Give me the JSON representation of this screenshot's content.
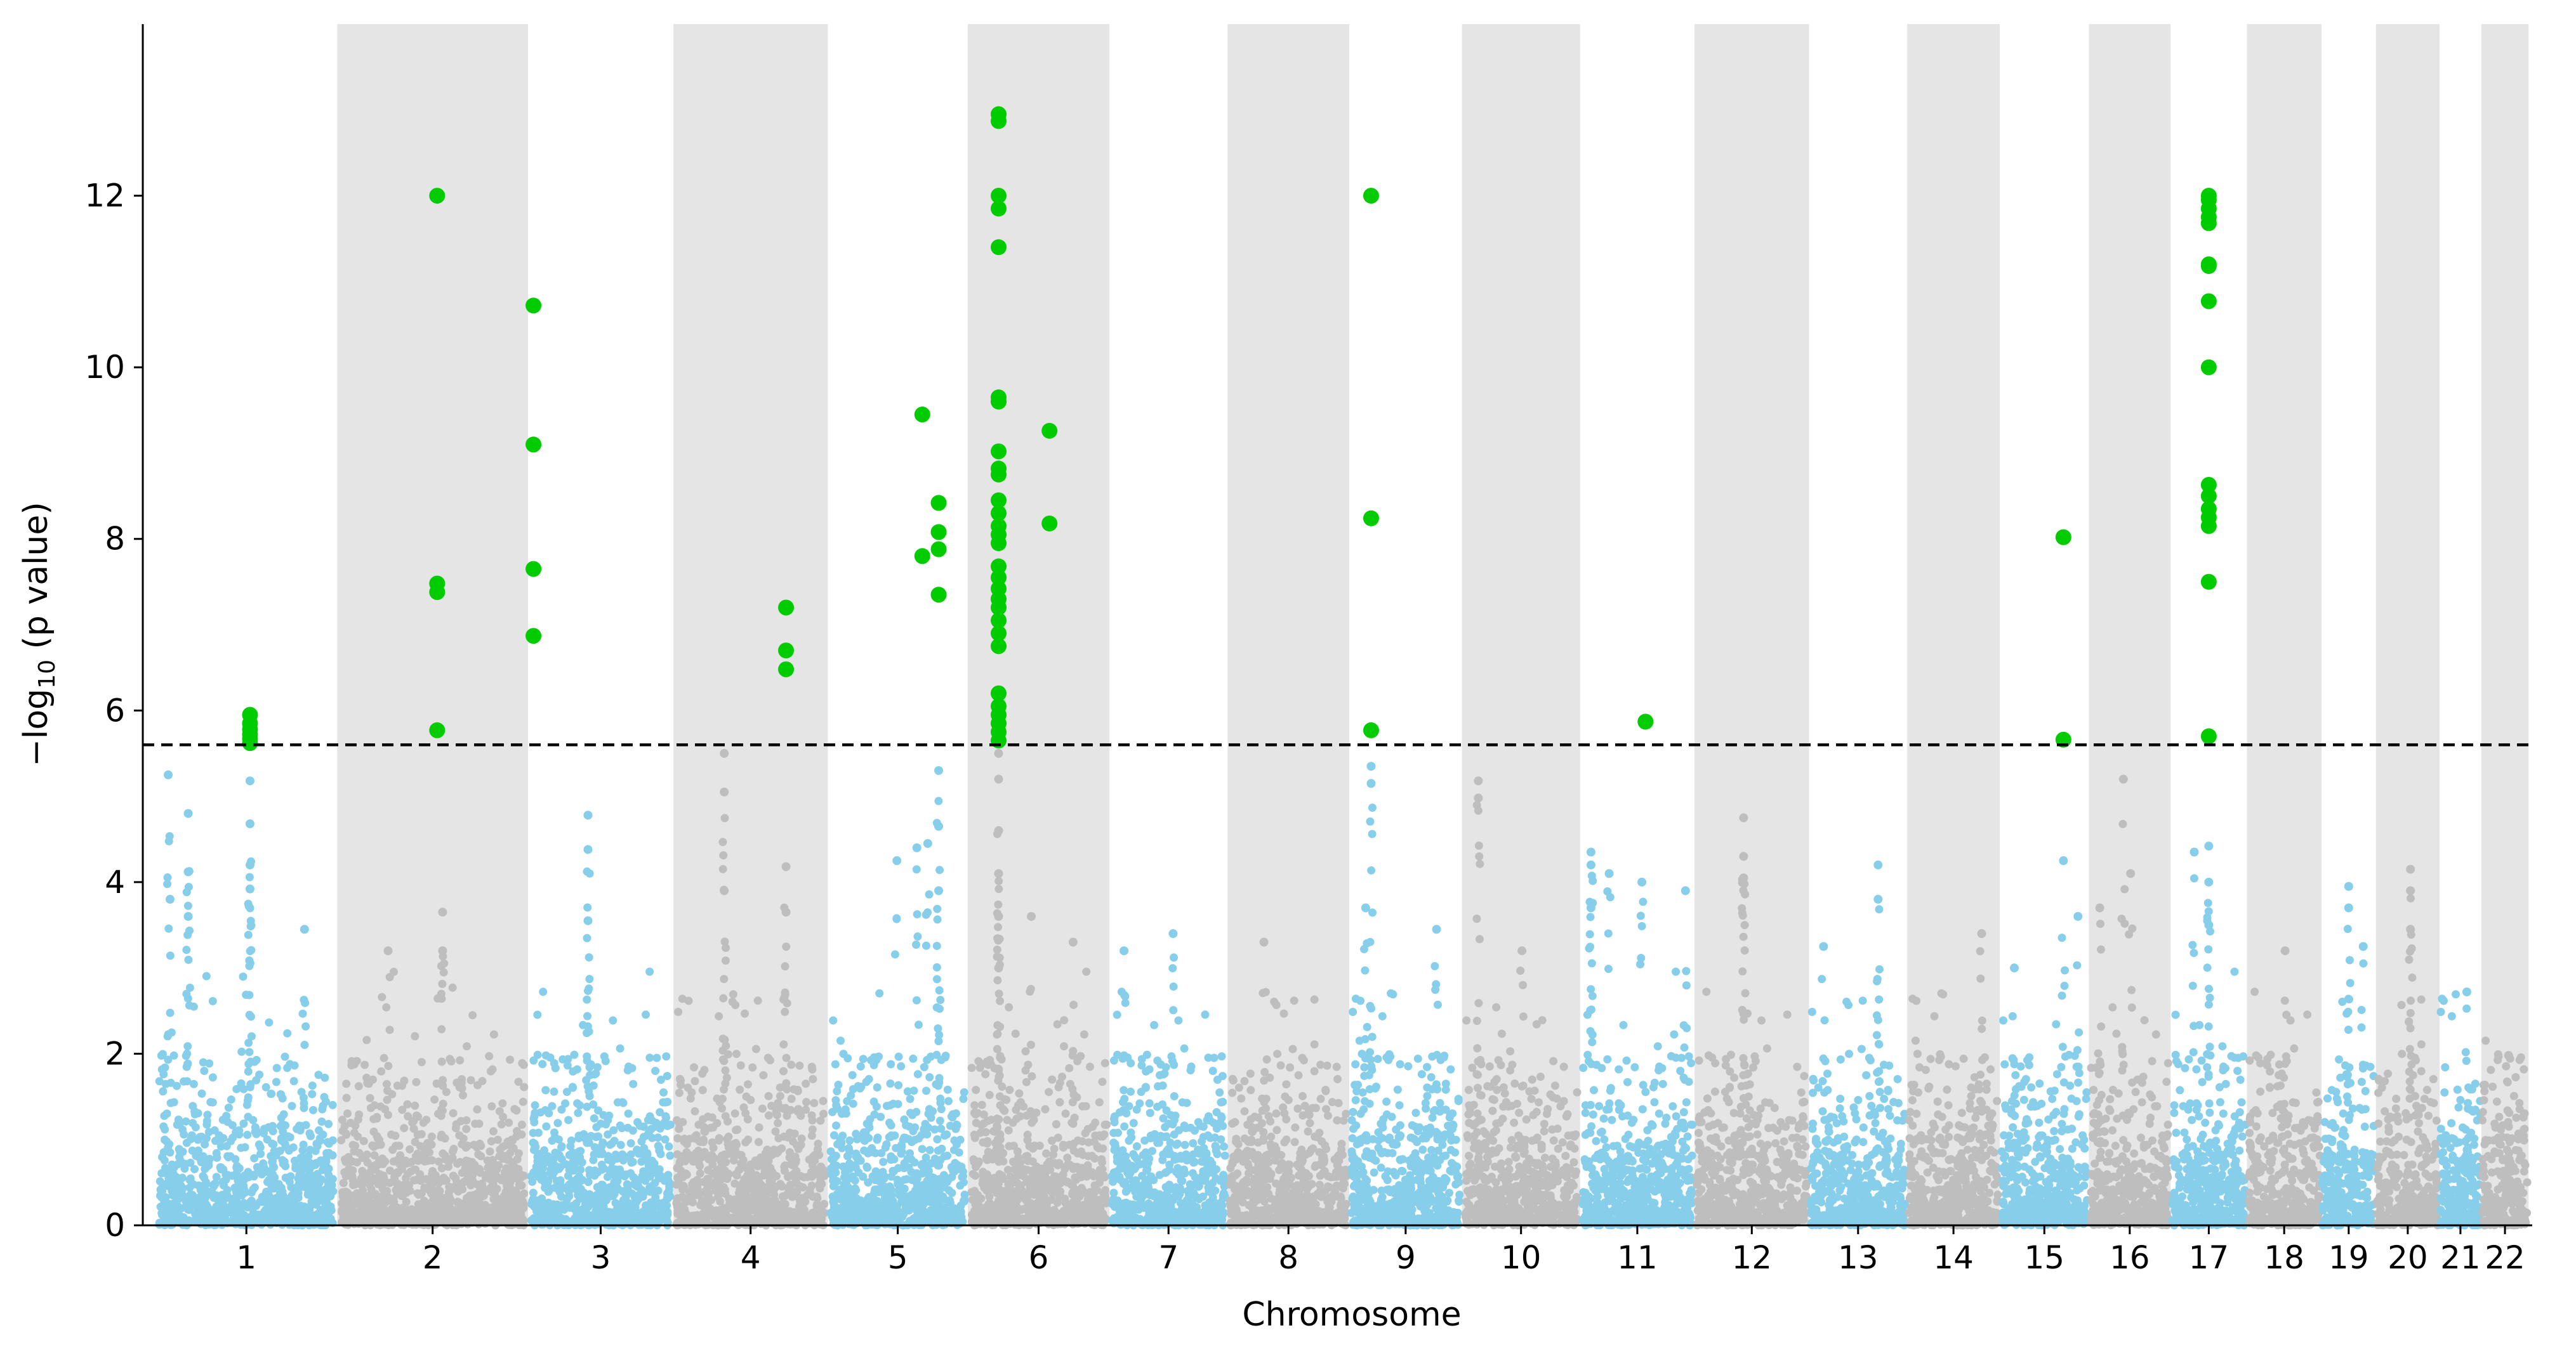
{
  "chart_data": {
    "type": "scatter",
    "subtype": "manhattan",
    "title": "",
    "xlabel": "Chromosome",
    "ylabel_parts": {
      "prefix": "−log",
      "sub": "10",
      "suffix": " (p value)"
    },
    "ylim": [
      0,
      14
    ],
    "y_ticks": [
      "0",
      "2",
      "4",
      "6",
      "8",
      "10",
      "12"
    ],
    "threshold": 5.6,
    "colors": {
      "odd_chromosome": "#87ceeb",
      "even_chromosome": "#bebebe",
      "significant": "#00cc00",
      "band": "#e5e5e5",
      "threshold_line": "#000000"
    },
    "chromosomes": [
      {
        "name": "1",
        "start": 0,
        "end": 1.0
      },
      {
        "name": "2",
        "start": 1.0,
        "end": 2.05
      },
      {
        "name": "3",
        "start": 2.05,
        "end": 2.85
      },
      {
        "name": "4",
        "start": 2.85,
        "end": 3.7
      },
      {
        "name": "5",
        "start": 3.7,
        "end": 4.47
      },
      {
        "name": "6",
        "start": 4.47,
        "end": 5.25
      },
      {
        "name": "7",
        "start": 5.25,
        "end": 5.9
      },
      {
        "name": "8",
        "start": 5.9,
        "end": 6.57
      },
      {
        "name": "9",
        "start": 6.57,
        "end": 7.19
      },
      {
        "name": "10",
        "start": 7.19,
        "end": 7.84
      },
      {
        "name": "11",
        "start": 7.84,
        "end": 8.47
      },
      {
        "name": "12",
        "start": 8.47,
        "end": 9.1
      },
      {
        "name": "13",
        "start": 9.1,
        "end": 9.64
      },
      {
        "name": "14",
        "start": 9.64,
        "end": 10.15
      },
      {
        "name": "15",
        "start": 10.15,
        "end": 10.64
      },
      {
        "name": "16",
        "start": 10.64,
        "end": 11.09
      },
      {
        "name": "17",
        "start": 11.09,
        "end": 11.51
      },
      {
        "name": "18",
        "start": 11.51,
        "end": 11.92
      },
      {
        "name": "19",
        "start": 11.92,
        "end": 12.22
      },
      {
        "name": "20",
        "start": 12.22,
        "end": 12.57
      },
      {
        "name": "21",
        "start": 12.57,
        "end": 12.8
      },
      {
        "name": "22",
        "start": 12.8,
        "end": 13.06
      }
    ],
    "xlim": [
      -0.07,
      13.08
    ],
    "significant_points": [
      {
        "chr": "1",
        "x": 0.52,
        "y": [
          5.95,
          5.85,
          5.78,
          5.72,
          5.67,
          5.62
        ]
      },
      {
        "chr": "2",
        "x": 1.55,
        "y": [
          12.0,
          7.48,
          7.38,
          5.77
        ]
      },
      {
        "chr": "3",
        "x": 2.08,
        "y": [
          10.72,
          9.1,
          7.65,
          6.87
        ]
      },
      {
        "chr": "4",
        "x": 3.47,
        "y": [
          7.2,
          6.7,
          6.48
        ]
      },
      {
        "chr": "5",
        "x": 4.22,
        "y": [
          9.45,
          7.8
        ]
      },
      {
        "chr": "5",
        "x": 4.31,
        "y": [
          8.42,
          8.08,
          7.88,
          7.35
        ]
      },
      {
        "chr": "6",
        "x": 4.64,
        "y": [
          12.95,
          12.87,
          12.0,
          11.85,
          11.4,
          9.65,
          9.6,
          9.02,
          8.82,
          8.75,
          8.45,
          8.3,
          8.15,
          8.05,
          7.95,
          7.68,
          7.55,
          7.42,
          7.3,
          7.2,
          7.05,
          6.9,
          6.75,
          6.2,
          6.05,
          5.95,
          5.85,
          5.75,
          5.65
        ]
      },
      {
        "chr": "6",
        "x": 4.92,
        "y": [
          9.26,
          8.18
        ]
      },
      {
        "chr": "9",
        "x": 6.69,
        "y": [
          12.0,
          8.24,
          5.77
        ]
      },
      {
        "chr": "11",
        "x": 8.2,
        "y": [
          5.87
        ]
      },
      {
        "chr": "15",
        "x": 10.5,
        "y": [
          8.02,
          5.66
        ]
      },
      {
        "chr": "17",
        "x": 11.3,
        "y": [
          12.0,
          11.95,
          11.85,
          11.75,
          11.68,
          11.2,
          11.18,
          10.77,
          10.0,
          8.63,
          8.5,
          8.35,
          8.25,
          8.15,
          7.5,
          5.7
        ]
      }
    ],
    "tall_peaks": [
      {
        "chr": "1",
        "x": 0.07,
        "y": 5.25
      },
      {
        "chr": "1",
        "x": 0.08,
        "y": 3.8
      },
      {
        "chr": "1",
        "x": 0.18,
        "y": 4.8
      },
      {
        "chr": "1",
        "x": 0.18,
        "y": 4.12
      },
      {
        "chr": "1",
        "x": 0.18,
        "y": 3.6
      },
      {
        "chr": "1",
        "x": 0.52,
        "y": 5.18
      },
      {
        "chr": "1",
        "x": 0.52,
        "y": 4.68
      },
      {
        "chr": "1",
        "x": 0.52,
        "y": 4.2
      },
      {
        "chr": "1",
        "x": 0.52,
        "y": 3.92
      },
      {
        "chr": "1",
        "x": 0.82,
        "y": 3.45
      },
      {
        "chr": "2",
        "x": 1.58,
        "y": 3.65
      },
      {
        "chr": "2",
        "x": 1.58,
        "y": 3.2
      },
      {
        "chr": "2",
        "x": 1.28,
        "y": 3.2
      },
      {
        "chr": "3",
        "x": 2.38,
        "y": 4.78
      },
      {
        "chr": "3",
        "x": 2.38,
        "y": 4.38
      },
      {
        "chr": "3",
        "x": 2.38,
        "y": 3.55
      },
      {
        "chr": "4",
        "x": 3.13,
        "y": 5.5
      },
      {
        "chr": "4",
        "x": 3.13,
        "y": 5.05
      },
      {
        "chr": "4",
        "x": 3.13,
        "y": 3.9
      },
      {
        "chr": "4",
        "x": 3.47,
        "y": 4.18
      },
      {
        "chr": "4",
        "x": 3.47,
        "y": 3.65
      },
      {
        "chr": "5",
        "x": 4.31,
        "y": 5.3
      },
      {
        "chr": "5",
        "x": 4.31,
        "y": 4.65
      },
      {
        "chr": "5",
        "x": 4.25,
        "y": 4.45
      },
      {
        "chr": "5",
        "x": 4.19,
        "y": 4.4
      },
      {
        "chr": "5",
        "x": 4.08,
        "y": 4.25
      },
      {
        "chr": "5",
        "x": 4.31,
        "y": 3.9
      },
      {
        "chr": "6",
        "x": 4.64,
        "y": 5.5
      },
      {
        "chr": "6",
        "x": 4.64,
        "y": 5.2
      },
      {
        "chr": "6",
        "x": 4.64,
        "y": 4.6
      },
      {
        "chr": "6",
        "x": 4.64,
        "y": 4.1
      },
      {
        "chr": "6",
        "x": 4.64,
        "y": 3.6
      },
      {
        "chr": "6",
        "x": 4.64,
        "y": 3.0
      },
      {
        "chr": "6",
        "x": 4.82,
        "y": 3.6
      },
      {
        "chr": "6",
        "x": 5.05,
        "y": 3.3
      },
      {
        "chr": "7",
        "x": 5.6,
        "y": 3.4
      },
      {
        "chr": "7",
        "x": 5.33,
        "y": 3.2
      },
      {
        "chr": "8",
        "x": 6.1,
        "y": 3.3
      },
      {
        "chr": "9",
        "x": 6.69,
        "y": 5.35
      },
      {
        "chr": "9",
        "x": 6.69,
        "y": 5.15
      },
      {
        "chr": "9",
        "x": 6.66,
        "y": 3.7
      },
      {
        "chr": "9",
        "x": 7.05,
        "y": 3.45
      },
      {
        "chr": "10",
        "x": 7.28,
        "y": 5.18
      },
      {
        "chr": "10",
        "x": 7.28,
        "y": 4.98
      },
      {
        "chr": "10",
        "x": 7.52,
        "y": 3.2
      },
      {
        "chr": "11",
        "x": 7.9,
        "y": 4.35
      },
      {
        "chr": "11",
        "x": 7.9,
        "y": 4.2
      },
      {
        "chr": "11",
        "x": 7.9,
        "y": 3.7
      },
      {
        "chr": "11",
        "x": 8.0,
        "y": 4.1
      },
      {
        "chr": "11",
        "x": 8.18,
        "y": 4.0
      },
      {
        "chr": "11",
        "x": 8.42,
        "y": 3.9
      },
      {
        "chr": "12",
        "x": 8.74,
        "y": 4.75
      },
      {
        "chr": "12",
        "x": 8.74,
        "y": 4.3
      },
      {
        "chr": "12",
        "x": 8.74,
        "y": 4.05
      },
      {
        "chr": "13",
        "x": 9.48,
        "y": 4.2
      },
      {
        "chr": "13",
        "x": 9.48,
        "y": 3.8
      },
      {
        "chr": "13",
        "x": 9.18,
        "y": 3.25
      },
      {
        "chr": "14",
        "x": 10.05,
        "y": 3.4
      },
      {
        "chr": "15",
        "x": 10.5,
        "y": 4.25
      },
      {
        "chr": "15",
        "x": 10.58,
        "y": 3.6
      },
      {
        "chr": "15",
        "x": 10.23,
        "y": 3.0
      },
      {
        "chr": "16",
        "x": 10.83,
        "y": 5.2
      },
      {
        "chr": "16",
        "x": 10.87,
        "y": 4.1
      },
      {
        "chr": "16",
        "x": 10.7,
        "y": 3.7
      },
      {
        "chr": "17",
        "x": 11.3,
        "y": 4.42
      },
      {
        "chr": "17",
        "x": 11.22,
        "y": 4.35
      },
      {
        "chr": "17",
        "x": 11.3,
        "y": 4.0
      },
      {
        "chr": "17",
        "x": 11.3,
        "y": 3.5
      },
      {
        "chr": "18",
        "x": 11.72,
        "y": 3.2
      },
      {
        "chr": "19",
        "x": 12.07,
        "y": 3.95
      },
      {
        "chr": "19",
        "x": 12.07,
        "y": 3.7
      },
      {
        "chr": "19",
        "x": 12.15,
        "y": 3.25
      },
      {
        "chr": "20",
        "x": 12.41,
        "y": 4.15
      },
      {
        "chr": "20",
        "x": 12.41,
        "y": 3.9
      },
      {
        "chr": "20",
        "x": 12.41,
        "y": 3.45
      },
      {
        "chr": "21",
        "x": 12.72,
        "y": 2.72
      },
      {
        "chr": "22",
        "x": 12.95,
        "y": 1.98
      }
    ],
    "background_noise": {
      "description": "dense cloud of non-significant SNPs per chromosome",
      "typical_max": 1.5,
      "upper_tail_max": 3.0
    }
  }
}
